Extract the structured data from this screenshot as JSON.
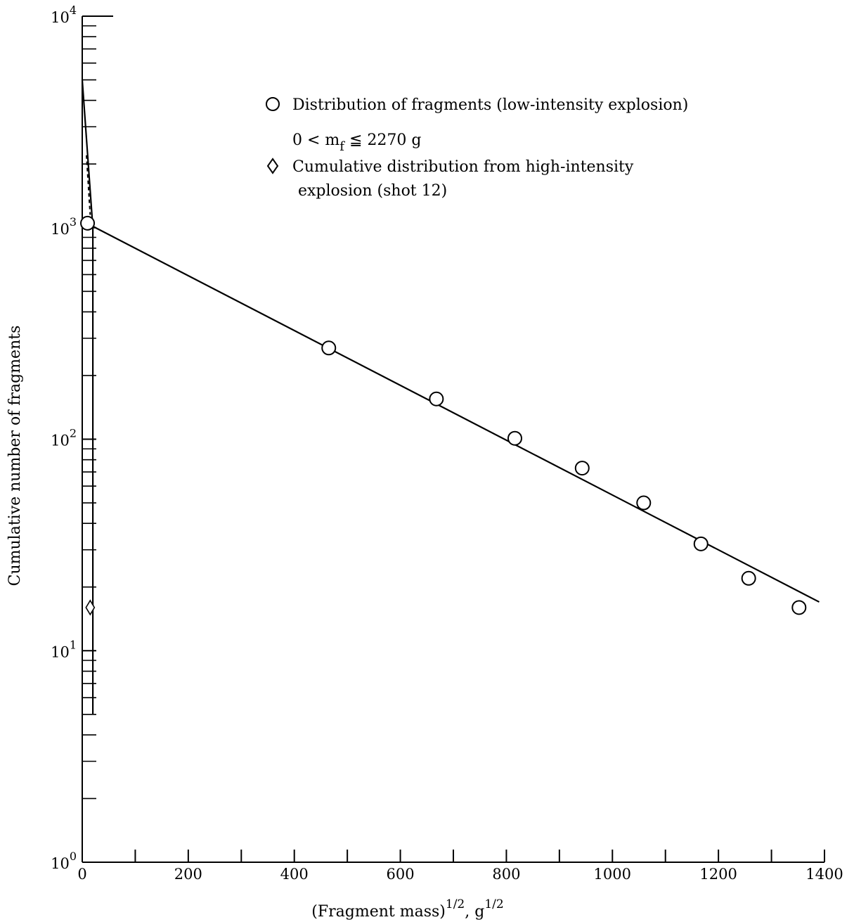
{
  "chart_data": {
    "type": "scatter",
    "xlabel": {
      "main": "(Fragment mass)",
      "main_sup": "1/2",
      "unit": ", g",
      "unit_sup": "1/2"
    },
    "ylabel": "Cumulative number of fragments",
    "xlim": [
      0,
      1400
    ],
    "ylim": [
      1,
      10000
    ],
    "yscale": "log",
    "x_ticks": [
      "0",
      "200",
      "400",
      "600",
      "800",
      "1000",
      "1200",
      "1400"
    ],
    "y_ticks": [
      {
        "base": "10",
        "exp": "0",
        "value": 1
      },
      {
        "base": "10",
        "exp": "1",
        "value": 10
      },
      {
        "base": "10",
        "exp": "2",
        "value": 100
      },
      {
        "base": "10",
        "exp": "3",
        "value": 1000
      },
      {
        "base": "10",
        "exp": "4",
        "value": 10000
      }
    ],
    "legend": {
      "position": "top-right",
      "entries": [
        {
          "marker": "circle",
          "label": "Distribution of fragments (low-intensity explosion)"
        },
        {
          "marker": "none",
          "label_prefix": "0 < m",
          "label_sub": "f",
          "label_suffix": " ≦ 2270 g"
        },
        {
          "marker": "diamond",
          "label": "Cumulative distribution from high-intensity"
        },
        {
          "marker": "none",
          "label": "explosion (shot 12)"
        }
      ]
    },
    "series": [
      {
        "name": "Distribution of fragments (low-intensity explosion)",
        "marker": "circle",
        "x": [
          10,
          465,
          668,
          816,
          943,
          1059,
          1167,
          1257,
          1352
        ],
        "y": [
          1050,
          270,
          155,
          101,
          73,
          50,
          32,
          22,
          16
        ]
      },
      {
        "name": "Cumulative distribution from high-intensity explosion (shot 12)",
        "marker": "diamond",
        "x": [
          15
        ],
        "y": [
          16
        ]
      }
    ],
    "fit_line": {
      "x": [
        15,
        1390
      ],
      "y": [
        1030,
        17
      ]
    },
    "steep_line": {
      "x": [
        0,
        20,
        20
      ],
      "y": [
        5000,
        1000,
        5
      ]
    },
    "dashed_segment": {
      "x": [
        8,
        15
      ],
      "y": [
        2200,
        1150
      ]
    }
  }
}
